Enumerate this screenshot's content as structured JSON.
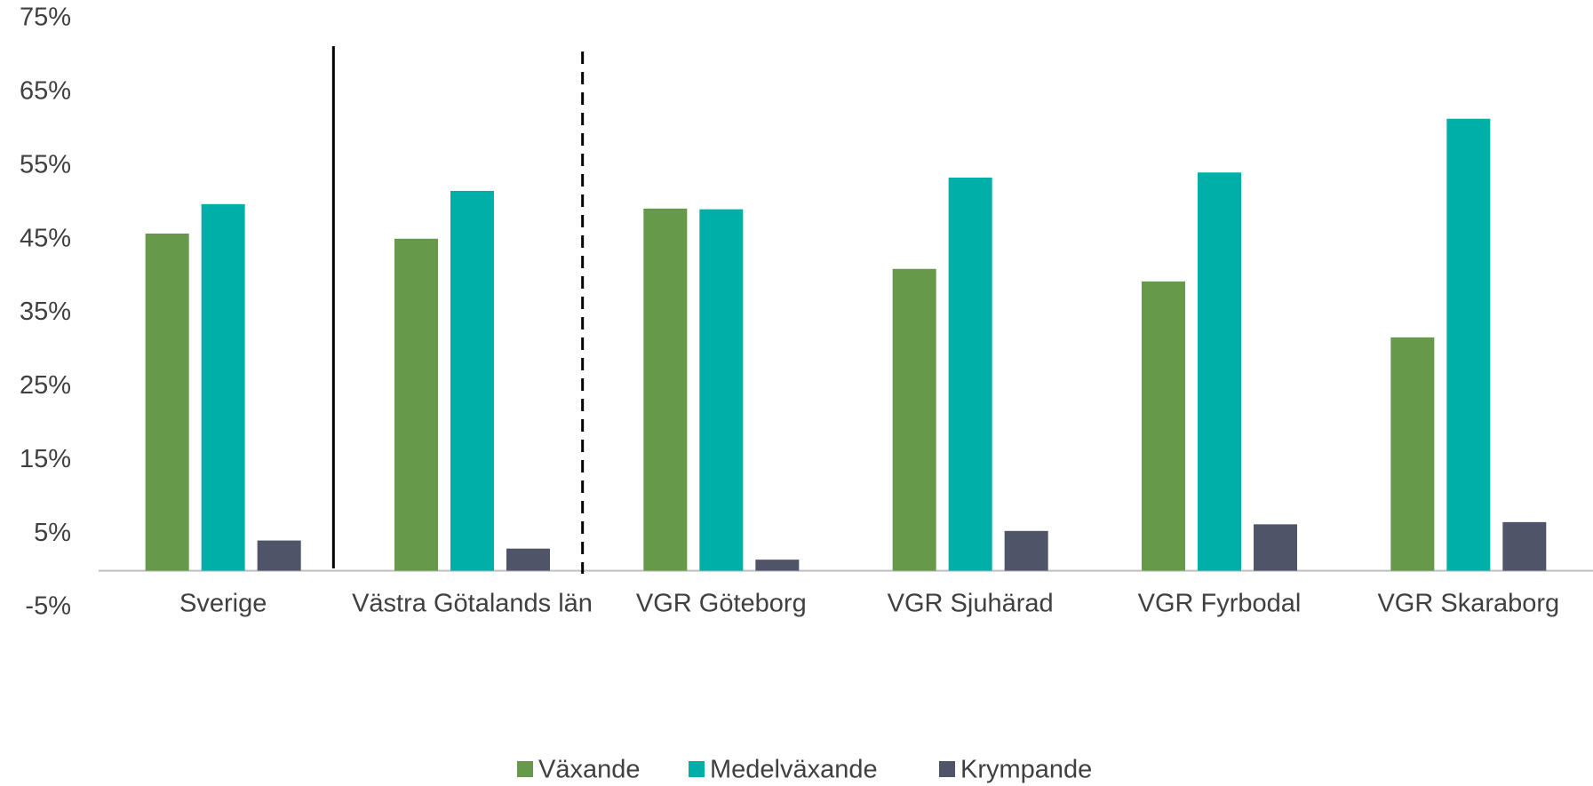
{
  "chart_data": {
    "type": "bar",
    "categories": [
      "Sverige",
      "Västra Götalands län",
      "VGR Göteborg",
      "VGR Sjuhärad",
      "VGR Fyrbodal",
      "VGR Skaraborg"
    ],
    "series": [
      {
        "name": "Växande",
        "color": "#66994a",
        "values": [
          45.8,
          45.1,
          49.2,
          41.0,
          39.3,
          31.7
        ]
      },
      {
        "name": "Medelväxande",
        "color": "#00b0a8",
        "values": [
          49.8,
          51.6,
          49.1,
          53.4,
          54.1,
          61.4
        ]
      },
      {
        "name": "Krympande",
        "color": "#4f5469",
        "values": [
          4.1,
          3.0,
          1.5,
          5.4,
          6.3,
          6.6
        ]
      }
    ],
    "ylim": [
      -5,
      75
    ],
    "yticks": [
      {
        "value": -5,
        "label": "-5%"
      },
      {
        "value": 5,
        "label": "5%"
      },
      {
        "value": 15,
        "label": "15%"
      },
      {
        "value": 25,
        "label": "25%"
      },
      {
        "value": 35,
        "label": "35%"
      },
      {
        "value": 45,
        "label": "45%"
      },
      {
        "value": 55,
        "label": "55%"
      },
      {
        "value": 65,
        "label": "65%"
      },
      {
        "value": 75,
        "label": "75%"
      }
    ],
    "grid": false,
    "legend": "bottom"
  }
}
